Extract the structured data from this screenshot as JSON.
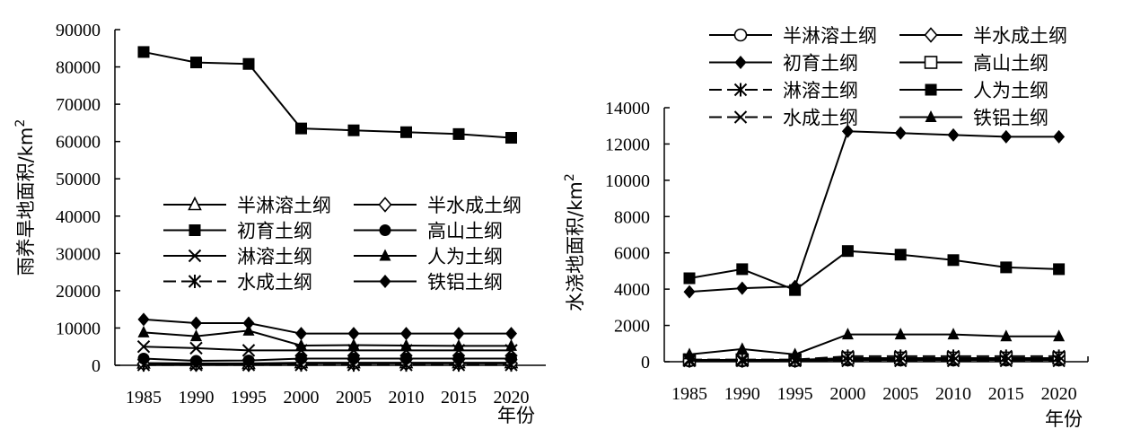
{
  "chart_data": [
    {
      "type": "line",
      "title": "",
      "xlabel": "年份",
      "ylabel": "雨养旱地面积/km",
      "ylabel_sup": "2",
      "categories": [
        "1985",
        "1990",
        "1995",
        "2000",
        "2005",
        "2010",
        "2015",
        "2020"
      ],
      "ylim": [
        0,
        90000
      ],
      "yticks": [
        "0",
        "10000",
        "20000",
        "30000",
        "40000",
        "50000",
        "60000",
        "70000",
        "80000",
        "90000"
      ],
      "legend_position": "lower-middle, 2 columns",
      "series": [
        {
          "name": "半淋溶土纲",
          "marker": "triangle-open",
          "dash": "solid",
          "values": [
            600,
            500,
            500,
            700,
            700,
            700,
            700,
            700
          ]
        },
        {
          "name": "半水成土纲",
          "marker": "diamond-open",
          "dash": "solid",
          "values": [
            400,
            300,
            300,
            500,
            500,
            500,
            500,
            500
          ]
        },
        {
          "name": "初育土纲",
          "marker": "square-filled",
          "dash": "solid",
          "values": [
            84000,
            81200,
            80800,
            63500,
            63000,
            62500,
            62000,
            61000
          ]
        },
        {
          "name": "高山土纲",
          "marker": "circle-filled",
          "dash": "solid",
          "values": [
            1800,
            1200,
            1300,
            1800,
            1800,
            1800,
            1800,
            1800
          ]
        },
        {
          "name": "淋溶土纲",
          "marker": "x",
          "dash": "solid",
          "values": [
            5000,
            4600,
            4000,
            4000,
            4000,
            4000,
            4000,
            4000
          ]
        },
        {
          "name": "人为土纲",
          "marker": "triangle-filled",
          "dash": "solid",
          "values": [
            8800,
            7800,
            9300,
            5300,
            5400,
            5300,
            5200,
            5200
          ]
        },
        {
          "name": "水成土纲",
          "marker": "asterisk",
          "dash": "dashed",
          "values": [
            100,
            100,
            100,
            100,
            100,
            100,
            100,
            100
          ]
        },
        {
          "name": "铁铝土纲",
          "marker": "diamond-filled",
          "dash": "solid",
          "values": [
            12300,
            11300,
            11300,
            8500,
            8500,
            8500,
            8500,
            8500
          ]
        }
      ]
    },
    {
      "type": "line",
      "title": "",
      "xlabel": "年份",
      "ylabel": "水浇地面积/km",
      "ylabel_sup": "2",
      "categories": [
        "1985",
        "1990",
        "1995",
        "2000",
        "2005",
        "2010",
        "2015",
        "2020"
      ],
      "ylim": [
        0,
        14000
      ],
      "yticks": [
        "0",
        "2000",
        "4000",
        "6000",
        "8000",
        "10000",
        "12000",
        "14000"
      ],
      "legend_position": "top, 2 columns",
      "series": [
        {
          "name": "半淋溶土纲",
          "marker": "circle-open",
          "dash": "solid",
          "values": [
            50,
            50,
            50,
            100,
            100,
            100,
            100,
            100
          ]
        },
        {
          "name": "半水成土纲",
          "marker": "diamond-open",
          "dash": "solid",
          "values": [
            80,
            80,
            80,
            150,
            150,
            150,
            150,
            150
          ]
        },
        {
          "name": "初育土纲",
          "marker": "diamond-filled",
          "dash": "solid",
          "values": [
            3850,
            4050,
            4150,
            12700,
            12600,
            12500,
            12400,
            12400
          ]
        },
        {
          "name": "高山土纲",
          "marker": "square-open",
          "dash": "solid",
          "values": [
            100,
            100,
            100,
            200,
            200,
            200,
            200,
            200
          ]
        },
        {
          "name": "淋溶土纲",
          "marker": "asterisk",
          "dash": "dashed",
          "values": [
            120,
            120,
            120,
            300,
            300,
            300,
            300,
            300
          ]
        },
        {
          "name": "人为土纲",
          "marker": "square-filled",
          "dash": "solid",
          "values": [
            4600,
            5100,
            3950,
            6100,
            5900,
            5600,
            5200,
            5100
          ]
        },
        {
          "name": "水成土纲",
          "marker": "x",
          "dash": "dashed",
          "values": [
            50,
            50,
            50,
            50,
            50,
            50,
            50,
            50
          ]
        },
        {
          "name": "铁铝土纲",
          "marker": "triangle-filled",
          "dash": "solid",
          "values": [
            400,
            700,
            400,
            1500,
            1500,
            1500,
            1400,
            1400
          ]
        }
      ]
    }
  ]
}
